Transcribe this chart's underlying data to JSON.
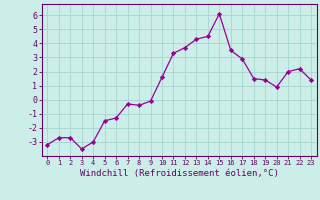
{
  "x": [
    0,
    1,
    2,
    3,
    4,
    5,
    6,
    7,
    8,
    9,
    10,
    11,
    12,
    13,
    14,
    15,
    16,
    17,
    18,
    19,
    20,
    21,
    22,
    23
  ],
  "y": [
    -3.2,
    -2.7,
    -2.7,
    -3.5,
    -3.0,
    -1.5,
    -1.3,
    -0.3,
    -0.4,
    -0.1,
    1.6,
    3.3,
    3.7,
    4.3,
    4.5,
    6.1,
    3.5,
    2.9,
    1.5,
    1.4,
    0.9,
    2.0,
    2.2,
    1.4
  ],
  "line_color": "#990099",
  "marker": "D",
  "marker_size": 2.2,
  "bg_color": "#cceee8",
  "grid_color": "#aad8d0",
  "xlabel": "Windchill (Refroidissement éolien,°C)",
  "xlim": [
    -0.5,
    23.5
  ],
  "ylim": [
    -4.0,
    6.8
  ],
  "yticks": [
    -3,
    -2,
    -1,
    0,
    1,
    2,
    3,
    4,
    5,
    6
  ],
  "xtick_labels": [
    "0",
    "1",
    "2",
    "3",
    "4",
    "5",
    "6",
    "7",
    "8",
    "9",
    "10",
    "11",
    "12",
    "13",
    "14",
    "15",
    "16",
    "17",
    "18",
    "19",
    "20",
    "21",
    "22",
    "23"
  ],
  "axis_color": "#660066",
  "tick_color": "#660066",
  "label_color": "#660066",
  "font_family": "monospace",
  "xlabel_fontsize": 6.5,
  "xtick_fontsize": 5.0,
  "ytick_fontsize": 6.0
}
